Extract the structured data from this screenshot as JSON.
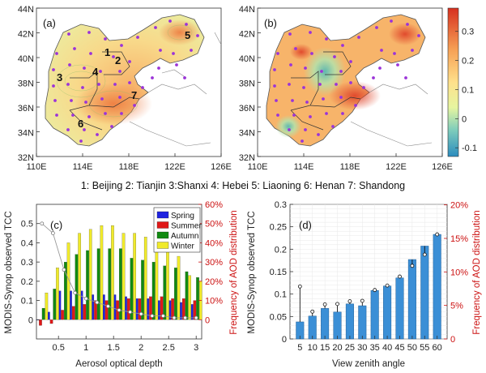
{
  "caption": "1: Beijing 2: Tianjin 3:Shanxi 4: Hebei 5: Liaoning 6: Henan 7: Shandong",
  "chart_data": [
    {
      "type": "heatmap",
      "panel_label": "(a)",
      "x_ticks": [
        "110E",
        "114E",
        "118E",
        "122E",
        "126E"
      ],
      "y_ticks": [
        "32N",
        "34N",
        "36N",
        "38N",
        "40N",
        "42N",
        "44N"
      ],
      "region_labels": [
        "1",
        "2",
        "3",
        "4",
        "5",
        "6",
        "7"
      ]
    },
    {
      "type": "heatmap",
      "panel_label": "(b)",
      "x_ticks": [
        "110E",
        "114E",
        "118E",
        "122E",
        "126E"
      ],
      "y_ticks": [
        "32N",
        "34N",
        "36N",
        "38N",
        "40N",
        "42N",
        "44N"
      ],
      "colorbar_ticks": [
        "0.3",
        "0.2",
        "0.1",
        "0",
        "-0.1"
      ],
      "colorbar_range": [
        -0.13,
        0.38
      ]
    },
    {
      "type": "bar",
      "panel_label": "(c)",
      "xlabel": "Aerosol optical depth",
      "ylabel": "MODIS-Synop observed TCC",
      "ylabel_right": "Frequency of AOD distribution",
      "x_ticks": [
        "0.5",
        "1",
        "1.5",
        "2",
        "2.5",
        "3"
      ],
      "y_ticks": [
        "0",
        "0.1",
        "0.2",
        "0.3",
        "0.4",
        "0.5"
      ],
      "y_right_ticks": [
        "0",
        "10%",
        "20%",
        "30%",
        "40%",
        "50%",
        "60%"
      ],
      "ylim": [
        -0.1,
        0.6
      ],
      "x_centers": [
        0.2,
        0.4,
        0.6,
        0.8,
        1.0,
        1.2,
        1.4,
        1.6,
        1.8,
        2.0,
        2.2,
        2.4,
        2.6,
        2.8,
        3.0
      ],
      "series": [
        {
          "name": "Spring",
          "color": "#1f23e0",
          "values": [
            0.0,
            0.04,
            0.15,
            0.15,
            0.15,
            0.13,
            0.13,
            0.13,
            0.12,
            0.11,
            0.11,
            0.1,
            0.1,
            0.09,
            0.08
          ]
        },
        {
          "name": "Summer",
          "color": "#e01818",
          "values": [
            -0.03,
            -0.02,
            0.05,
            0.07,
            0.08,
            0.1,
            0.1,
            0.1,
            0.11,
            0.11,
            0.12,
            0.12,
            0.11,
            0.11,
            0.1
          ]
        },
        {
          "name": "Autumn",
          "color": "#118a11",
          "values": [
            0.06,
            0.16,
            0.3,
            0.34,
            0.36,
            0.37,
            0.37,
            0.37,
            0.32,
            0.31,
            0.3,
            0.28,
            0.27,
            0.25,
            0.22
          ]
        },
        {
          "name": "Winter",
          "color": "#f0ea2a",
          "values": [
            0.14,
            0.27,
            0.4,
            0.45,
            0.47,
            0.49,
            0.49,
            0.45,
            0.45,
            0.43,
            0.4,
            0.37,
            0.33,
            0.23,
            0.2
          ]
        }
      ],
      "freq_line": [
        0.5,
        0.45,
        0.26,
        0.14,
        0.11,
        0.09,
        0.07,
        0.05,
        0.04,
        0.03,
        0.02,
        0.02,
        0.01,
        0.01,
        0.01
      ],
      "legend_position": "top-right"
    },
    {
      "type": "bar",
      "panel_label": "(d)",
      "xlabel": "View zenith angle",
      "ylabel": "MODIS-Synop observed TCC",
      "ylabel_right": "Frequency of AOD distribution",
      "categories": [
        "5",
        "10",
        "15",
        "20",
        "25",
        "30",
        "35",
        "40",
        "45",
        "50",
        "55",
        "60"
      ],
      "values": [
        0.038,
        0.051,
        0.068,
        0.06,
        0.078,
        0.074,
        0.108,
        0.118,
        0.136,
        0.177,
        0.207,
        0.233
      ],
      "freq_markers": [
        0.117,
        0.061,
        0.077,
        0.078,
        0.084,
        0.085,
        0.109,
        0.119,
        0.139,
        0.163,
        0.188,
        0.233
      ],
      "y_ticks": [
        "0",
        "0.05",
        "0.1",
        "0.15",
        "0.2",
        "0.25",
        "0.3"
      ],
      "y_right_ticks": [
        "0",
        "5%",
        "10%",
        "15%",
        "20%"
      ],
      "ylim": [
        0,
        0.3
      ],
      "bar_color": "#3b8fd6"
    }
  ]
}
